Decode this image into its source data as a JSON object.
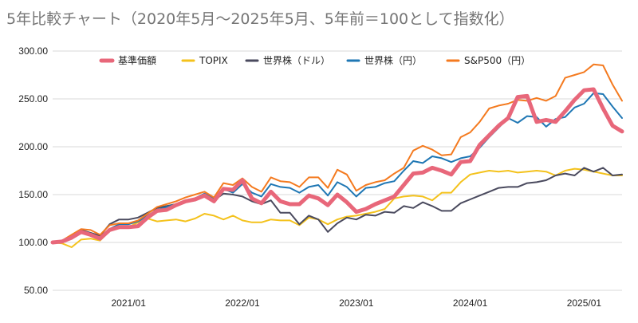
{
  "chart_data": {
    "type": "line",
    "title": "5年比較チャート（2020年5月〜2025年5月、5年前＝100として指数化）",
    "xlabel": "",
    "ylabel": "",
    "ylim": [
      50,
      300
    ],
    "yticks": [
      "50.00",
      "100.00",
      "150.00",
      "200.00",
      "250.00",
      "300.00"
    ],
    "xticks": [
      "2021/01",
      "2022/01",
      "2023/01",
      "2024/01",
      "2025/01"
    ],
    "x": [
      "2020/05",
      "2020/06",
      "2020/07",
      "2020/08",
      "2020/09",
      "2020/10",
      "2020/11",
      "2020/12",
      "2021/01",
      "2021/02",
      "2021/03",
      "2021/04",
      "2021/05",
      "2021/06",
      "2021/07",
      "2021/08",
      "2021/09",
      "2021/10",
      "2021/11",
      "2021/12",
      "2022/01",
      "2022/02",
      "2022/03",
      "2022/04",
      "2022/05",
      "2022/06",
      "2022/07",
      "2022/08",
      "2022/09",
      "2022/10",
      "2022/11",
      "2022/12",
      "2023/01",
      "2023/02",
      "2023/03",
      "2023/04",
      "2023/05",
      "2023/06",
      "2023/07",
      "2023/08",
      "2023/09",
      "2023/10",
      "2023/11",
      "2023/12",
      "2024/01",
      "2024/02",
      "2024/03",
      "2024/04",
      "2024/05",
      "2024/06",
      "2024/07",
      "2024/08",
      "2024/09",
      "2024/10",
      "2024/11",
      "2024/12",
      "2025/01",
      "2025/02",
      "2025/03",
      "2025/04",
      "2025/05"
    ],
    "grid": true,
    "legend_position": "top",
    "series": [
      {
        "name": "基準価額",
        "color": "#e8677a",
        "width": 5,
        "values": [
          100,
          101,
          105,
          111,
          108,
          104,
          113,
          116,
          116,
          117,
          126,
          133,
          134,
          139,
          143,
          145,
          149,
          143,
          156,
          155,
          165,
          146,
          141,
          153,
          143,
          140,
          140,
          149,
          146,
          139,
          150,
          142,
          132,
          135,
          140,
          144,
          148,
          160,
          172,
          173,
          178,
          175,
          171,
          184,
          185,
          202,
          212,
          222,
          230,
          252,
          253,
          226,
          228,
          226,
          237,
          249,
          259,
          260,
          240,
          222,
          216
        ]
      },
      {
        "name": "TOPIX",
        "color": "#f4c21c",
        "width": 2,
        "values": [
          100,
          99,
          95,
          103,
          104,
          102,
          112,
          116,
          116,
          121,
          125,
          122,
          123,
          124,
          122,
          125,
          130,
          128,
          124,
          128,
          123,
          121,
          121,
          124,
          123,
          123,
          118,
          126,
          124,
          119,
          124,
          127,
          128,
          130,
          132,
          135,
          146,
          148,
          149,
          148,
          144,
          152,
          152,
          163,
          171,
          173,
          175,
          174,
          175,
          173,
          174,
          175,
          174,
          170,
          175,
          177,
          176,
          174,
          172,
          170,
          170
        ]
      },
      {
        "name": "世界株（ドル）",
        "color": "#4a4a5e",
        "width": 2,
        "values": [
          100,
          102,
          106,
          113,
          110,
          107,
          119,
          124,
          124,
          126,
          131,
          136,
          138,
          140,
          143,
          146,
          150,
          144,
          151,
          150,
          148,
          143,
          140,
          144,
          131,
          131,
          119,
          128,
          124,
          111,
          120,
          126,
          124,
          129,
          128,
          132,
          131,
          138,
          136,
          142,
          138,
          133,
          133,
          141,
          145,
          149,
          153,
          157,
          158,
          158,
          162,
          163,
          165,
          170,
          172,
          170,
          178,
          174,
          178,
          170,
          171
        ]
      },
      {
        "name": "世界株（円）",
        "color": "#1f77b4",
        "width": 2,
        "values": [
          100,
          101,
          106,
          112,
          109,
          105,
          114,
          119,
          119,
          122,
          128,
          134,
          137,
          140,
          144,
          146,
          151,
          146,
          156,
          152,
          161,
          152,
          148,
          161,
          158,
          157,
          152,
          158,
          160,
          149,
          163,
          158,
          148,
          157,
          158,
          162,
          164,
          175,
          185,
          183,
          190,
          188,
          184,
          188,
          190,
          199,
          210,
          220,
          230,
          225,
          232,
          231,
          221,
          229,
          231,
          241,
          245,
          256,
          255,
          242,
          230
        ]
      },
      {
        "name": "S&P500（円）",
        "color": "#f47a1f",
        "width": 2,
        "values": [
          100,
          102,
          108,
          114,
          113,
          108,
          118,
          120,
          120,
          123,
          130,
          137,
          140,
          143,
          147,
          150,
          153,
          147,
          162,
          160,
          167,
          158,
          153,
          168,
          164,
          163,
          158,
          168,
          168,
          157,
          176,
          171,
          154,
          160,
          163,
          165,
          172,
          178,
          196,
          201,
          197,
          191,
          192,
          210,
          215,
          226,
          240,
          243,
          245,
          249,
          248,
          251,
          248,
          253,
          272,
          275,
          278,
          286,
          285,
          265,
          248
        ]
      }
    ]
  }
}
